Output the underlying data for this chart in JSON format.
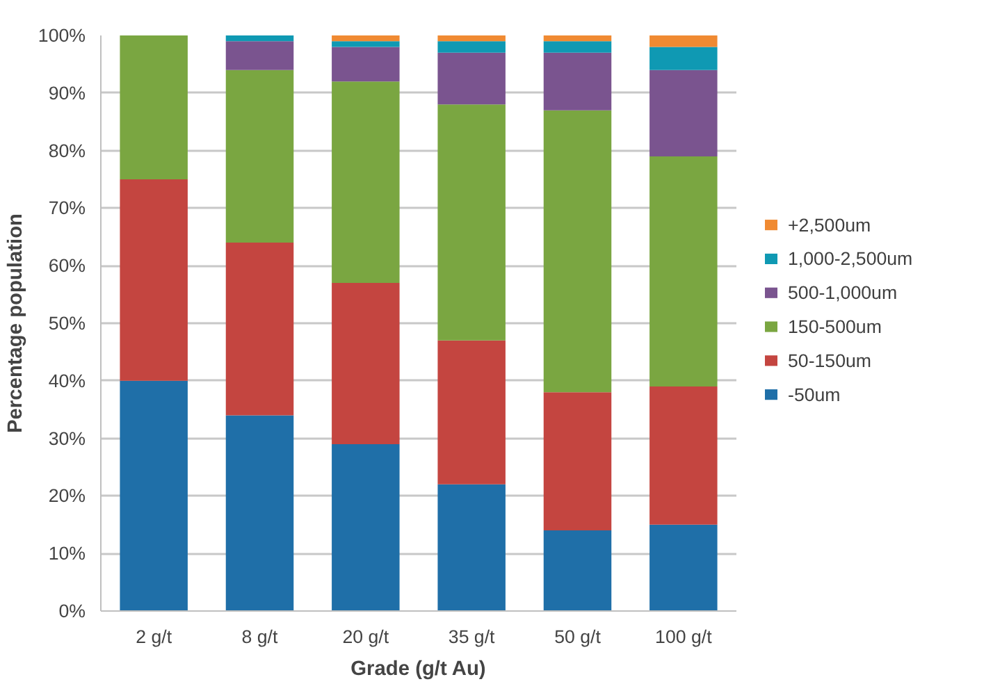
{
  "chart_data": {
    "type": "bar",
    "stacked": true,
    "xlabel": "Grade (g/t Au)",
    "ylabel": "Percentage population",
    "categories": [
      "2 g/t",
      "8 g/t",
      "20 g/t",
      "35 g/t",
      "50 g/t",
      "100 g/t"
    ],
    "series": [
      {
        "name": "-50um",
        "color": "#1f6fa8",
        "values": [
          40,
          34,
          29,
          22,
          14,
          15
        ]
      },
      {
        "name": "50-150um",
        "color": "#c44540",
        "values": [
          35,
          30,
          28,
          25,
          24,
          24
        ]
      },
      {
        "name": "150-500um",
        "color": "#7aa641",
        "values": [
          25,
          30,
          35,
          41,
          49,
          40
        ]
      },
      {
        "name": "500-1,000um",
        "color": "#7a548f",
        "values": [
          0,
          5,
          6,
          9,
          10,
          15
        ]
      },
      {
        "name": "1,000-2,500um",
        "color": "#0f99b3",
        "values": [
          0,
          1,
          1,
          2,
          2,
          4
        ]
      },
      {
        "name": "+2,500um",
        "color": "#f08a32",
        "values": [
          0,
          0,
          1,
          1,
          1,
          2
        ]
      }
    ],
    "ylim": [
      0,
      100
    ],
    "yticks": [
      {
        "value": 0,
        "label": "0%"
      },
      {
        "value": 10,
        "label": "10%"
      },
      {
        "value": 20,
        "label": "20%"
      },
      {
        "value": 30,
        "label": "30%"
      },
      {
        "value": 40,
        "label": "40%"
      },
      {
        "value": 50,
        "label": "50%"
      },
      {
        "value": 60,
        "label": "60%"
      },
      {
        "value": 70,
        "label": "70%"
      },
      {
        "value": 80,
        "label": "80%"
      },
      {
        "value": 90,
        "label": "90%"
      },
      {
        "value": 100,
        "label": "100%"
      }
    ],
    "grid": "y",
    "legend": "right"
  }
}
